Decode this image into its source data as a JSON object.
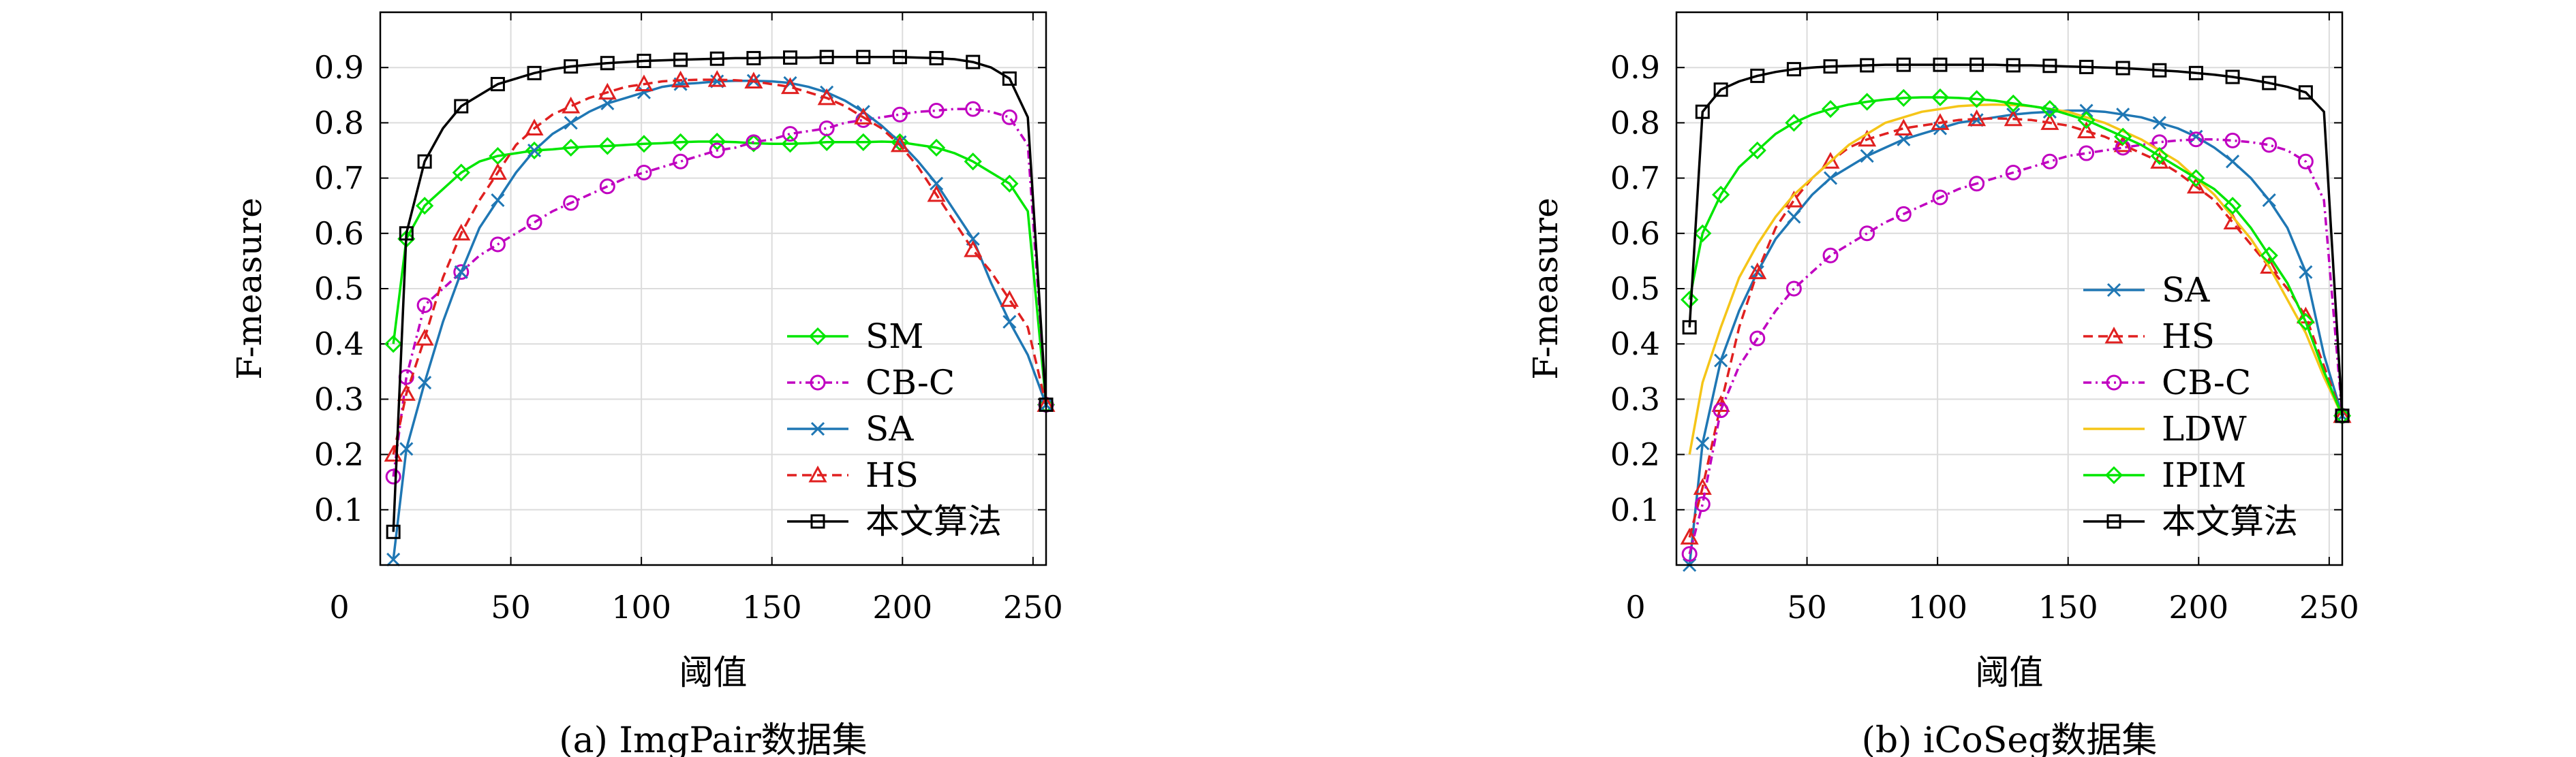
{
  "chart_data": [
    {
      "type": "line",
      "caption": "(a) ImgPair数据集",
      "xlabel": "阈值",
      "ylabel": "F-measure",
      "xlim": [
        0,
        255
      ],
      "ylim": [
        0,
        1
      ],
      "xticks": [
        0,
        50,
        100,
        150,
        200,
        250
      ],
      "yticks": [
        0.1,
        0.2,
        0.3,
        0.4,
        0.5,
        0.6,
        0.7,
        0.8,
        0.9
      ],
      "grid": true,
      "legend_position": "bottom-right",
      "x": [
        5,
        10,
        17,
        24,
        31,
        38,
        45,
        52,
        59,
        66,
        73,
        80,
        87,
        94,
        101,
        108,
        115,
        122,
        129,
        136,
        143,
        150,
        157,
        164,
        171,
        178,
        185,
        192,
        199,
        206,
        213,
        220,
        227,
        234,
        241,
        248,
        255
      ],
      "series": [
        {
          "name": "SM",
          "color": "#00e600",
          "dash": "",
          "marker": "diamond",
          "values": [
            0.4,
            0.59,
            0.65,
            0.68,
            0.71,
            0.73,
            0.74,
            0.745,
            0.75,
            0.752,
            0.755,
            0.757,
            0.758,
            0.76,
            0.762,
            0.763,
            0.765,
            0.766,
            0.766,
            0.765,
            0.763,
            0.762,
            0.762,
            0.763,
            0.765,
            0.765,
            0.765,
            0.766,
            0.765,
            0.76,
            0.755,
            0.745,
            0.73,
            0.71,
            0.69,
            0.64,
            0.29
          ]
        },
        {
          "name": "CB-C",
          "color": "#c000c0",
          "dash": "12,6,3,6",
          "marker": "circle",
          "values": [
            0.16,
            0.34,
            0.47,
            0.5,
            0.53,
            0.56,
            0.58,
            0.6,
            0.62,
            0.64,
            0.655,
            0.67,
            0.685,
            0.7,
            0.71,
            0.72,
            0.73,
            0.74,
            0.75,
            0.755,
            0.765,
            0.77,
            0.78,
            0.785,
            0.79,
            0.8,
            0.805,
            0.81,
            0.815,
            0.82,
            0.822,
            0.825,
            0.825,
            0.82,
            0.81,
            0.76,
            0.29
          ]
        },
        {
          "name": "SA",
          "color": "#1f77b4",
          "dash": "",
          "marker": "x",
          "values": [
            0.01,
            0.21,
            0.33,
            0.44,
            0.53,
            0.61,
            0.66,
            0.71,
            0.75,
            0.78,
            0.8,
            0.82,
            0.835,
            0.845,
            0.855,
            0.865,
            0.87,
            0.872,
            0.875,
            0.876,
            0.876,
            0.875,
            0.872,
            0.865,
            0.855,
            0.84,
            0.82,
            0.795,
            0.765,
            0.73,
            0.69,
            0.64,
            0.59,
            0.51,
            0.44,
            0.38,
            0.29
          ]
        },
        {
          "name": "HS",
          "color": "#e02020",
          "dash": "14,8",
          "marker": "triangle",
          "values": [
            0.2,
            0.31,
            0.41,
            0.52,
            0.6,
            0.66,
            0.71,
            0.76,
            0.79,
            0.815,
            0.83,
            0.845,
            0.855,
            0.865,
            0.87,
            0.875,
            0.877,
            0.878,
            0.878,
            0.877,
            0.875,
            0.87,
            0.865,
            0.855,
            0.845,
            0.83,
            0.81,
            0.79,
            0.76,
            0.72,
            0.67,
            0.62,
            0.57,
            0.53,
            0.48,
            0.43,
            0.29
          ]
        },
        {
          "name": "本文算法",
          "color": "#000000",
          "dash": "",
          "marker": "square",
          "values": [
            0.06,
            0.6,
            0.73,
            0.79,
            0.83,
            0.85,
            0.87,
            0.88,
            0.89,
            0.897,
            0.902,
            0.905,
            0.908,
            0.91,
            0.912,
            0.913,
            0.914,
            0.915,
            0.916,
            0.917,
            0.917,
            0.918,
            0.918,
            0.918,
            0.919,
            0.919,
            0.919,
            0.919,
            0.919,
            0.918,
            0.917,
            0.915,
            0.91,
            0.9,
            0.88,
            0.81,
            0.29
          ]
        }
      ]
    },
    {
      "type": "line",
      "caption": "(b) iCoSeg数据集",
      "xlabel": "阈值",
      "ylabel": "F-measure",
      "xlim": [
        0,
        255
      ],
      "ylim": [
        0,
        1
      ],
      "xticks": [
        0,
        50,
        100,
        150,
        200,
        250
      ],
      "yticks": [
        0.1,
        0.2,
        0.3,
        0.4,
        0.5,
        0.6,
        0.7,
        0.8,
        0.9
      ],
      "grid": true,
      "legend_position": "bottom-right",
      "x": [
        5,
        10,
        17,
        24,
        31,
        38,
        45,
        52,
        59,
        66,
        73,
        80,
        87,
        94,
        101,
        108,
        115,
        122,
        129,
        136,
        143,
        150,
        157,
        164,
        171,
        178,
        185,
        192,
        199,
        206,
        213,
        220,
        227,
        234,
        241,
        248,
        255
      ],
      "series": [
        {
          "name": "SA",
          "color": "#1f77b4",
          "dash": "",
          "marker": "x",
          "values": [
            0.0,
            0.22,
            0.37,
            0.46,
            0.53,
            0.59,
            0.63,
            0.67,
            0.7,
            0.72,
            0.74,
            0.755,
            0.77,
            0.78,
            0.79,
            0.8,
            0.805,
            0.81,
            0.815,
            0.818,
            0.82,
            0.822,
            0.822,
            0.82,
            0.815,
            0.81,
            0.8,
            0.79,
            0.775,
            0.755,
            0.73,
            0.7,
            0.66,
            0.61,
            0.53,
            0.38,
            0.27
          ]
        },
        {
          "name": "HS",
          "color": "#e02020",
          "dash": "14,8",
          "marker": "triangle",
          "values": [
            0.05,
            0.14,
            0.29,
            0.43,
            0.53,
            0.61,
            0.66,
            0.7,
            0.73,
            0.755,
            0.77,
            0.78,
            0.79,
            0.795,
            0.8,
            0.805,
            0.807,
            0.808,
            0.807,
            0.805,
            0.8,
            0.795,
            0.785,
            0.775,
            0.76,
            0.745,
            0.73,
            0.71,
            0.685,
            0.66,
            0.62,
            0.58,
            0.54,
            0.5,
            0.45,
            0.36,
            0.27
          ]
        },
        {
          "name": "CB-C",
          "color": "#c000c0",
          "dash": "12,6,3,6",
          "marker": "circle",
          "values": [
            0.02,
            0.11,
            0.28,
            0.36,
            0.41,
            0.46,
            0.5,
            0.53,
            0.56,
            0.58,
            0.6,
            0.62,
            0.635,
            0.65,
            0.665,
            0.68,
            0.69,
            0.7,
            0.71,
            0.72,
            0.73,
            0.74,
            0.745,
            0.75,
            0.755,
            0.76,
            0.765,
            0.768,
            0.77,
            0.77,
            0.768,
            0.765,
            0.76,
            0.75,
            0.73,
            0.66,
            0.27
          ]
        },
        {
          "name": "LDW",
          "color": "#f5c518",
          "dash": "",
          "marker": "none",
          "values": [
            0.2,
            0.33,
            0.43,
            0.52,
            0.58,
            0.63,
            0.67,
            0.7,
            0.73,
            0.76,
            0.78,
            0.8,
            0.81,
            0.82,
            0.825,
            0.83,
            0.832,
            0.833,
            0.832,
            0.83,
            0.825,
            0.82,
            0.81,
            0.8,
            0.785,
            0.77,
            0.75,
            0.73,
            0.7,
            0.67,
            0.63,
            0.59,
            0.54,
            0.48,
            0.42,
            0.34,
            0.27
          ]
        },
        {
          "name": "IPIM",
          "color": "#00e600",
          "dash": "",
          "marker": "diamond",
          "values": [
            0.48,
            0.6,
            0.67,
            0.72,
            0.75,
            0.78,
            0.8,
            0.815,
            0.825,
            0.833,
            0.838,
            0.842,
            0.845,
            0.846,
            0.846,
            0.845,
            0.843,
            0.84,
            0.835,
            0.83,
            0.825,
            0.815,
            0.805,
            0.79,
            0.775,
            0.76,
            0.74,
            0.72,
            0.7,
            0.68,
            0.65,
            0.61,
            0.56,
            0.51,
            0.44,
            0.35,
            0.27
          ]
        },
        {
          "name": "本文算法",
          "color": "#000000",
          "dash": "",
          "marker": "square",
          "values": [
            0.43,
            0.82,
            0.86,
            0.875,
            0.885,
            0.892,
            0.897,
            0.9,
            0.902,
            0.903,
            0.904,
            0.905,
            0.905,
            0.905,
            0.905,
            0.905,
            0.905,
            0.905,
            0.904,
            0.904,
            0.903,
            0.902,
            0.901,
            0.9,
            0.899,
            0.897,
            0.895,
            0.893,
            0.89,
            0.887,
            0.883,
            0.878,
            0.872,
            0.865,
            0.855,
            0.82,
            0.27
          ]
        }
      ]
    }
  ]
}
